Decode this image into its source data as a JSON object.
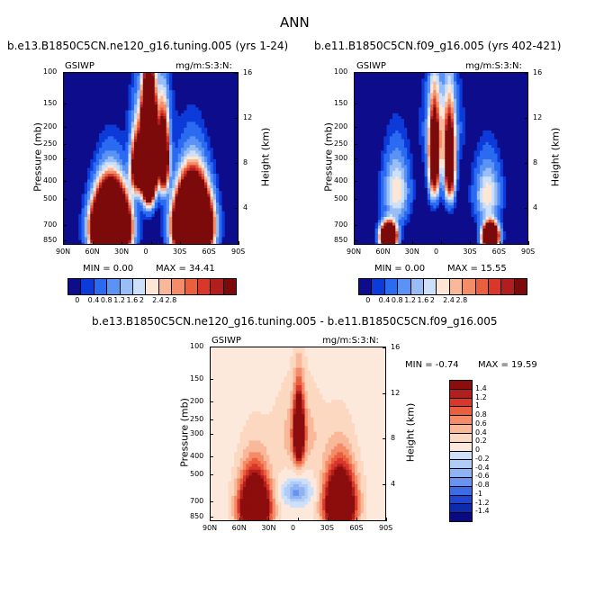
{
  "figure": {
    "title": "ANN"
  },
  "chart_data": [
    {
      "type": "heatmap",
      "title": "b.e13.B1850C5CN.ne120_g16.tuning.005 (yrs 1-24)",
      "variable_label": "GSIWP",
      "units_label": "mg/m:S:3:N:",
      "xlabel": "",
      "ylabel": "Pressure (mb)",
      "y2label": "Height (km)",
      "x_ticks": [
        "90N",
        "60N",
        "30N",
        "0",
        "30S",
        "60S",
        "90S"
      ],
      "y_ticks": [
        "100",
        "150",
        "200",
        "250",
        "300",
        "400",
        "500",
        "700",
        "850"
      ],
      "y2_ticks": [
        "16",
        "12",
        "8",
        "4"
      ],
      "min_text": "MIN =    0.00",
      "max_text": "MAX =   34.41",
      "min": 0.0,
      "max": 34.41,
      "field": {
        "background": 0.0,
        "blobs": [
          {
            "lat": 42,
            "p": 720,
            "slat": 14,
            "sp": 230,
            "amp": 40
          },
          {
            "lat": -42,
            "p": 700,
            "slat": 14,
            "sp": 240,
            "amp": 40
          },
          {
            "lat": 3,
            "p": 300,
            "slat": 6,
            "sp": 150,
            "amp": 34
          },
          {
            "lat": -12,
            "p": 300,
            "slat": 5,
            "sp": 120,
            "amp": 10
          },
          {
            "lat": 15,
            "p": 330,
            "slat": 6,
            "sp": 110,
            "amp": 8
          },
          {
            "lat": 0,
            "p": 180,
            "slat": 16,
            "sp": 90,
            "amp": 1.8
          }
        ]
      }
    },
    {
      "type": "heatmap",
      "title": "b.e11.B1850C5CN.f09_g16.005 (yrs 402-421)",
      "variable_label": "GSIWP",
      "units_label": "mg/m:S:3:N:",
      "xlabel": "",
      "ylabel": "Pressure (mb)",
      "y2label": "Height (km)",
      "x_ticks": [
        "90N",
        "60N",
        "30N",
        "0",
        "30S",
        "60S",
        "90S"
      ],
      "y_ticks": [
        "100",
        "150",
        "200",
        "250",
        "300",
        "400",
        "500",
        "700",
        "850"
      ],
      "y2_ticks": [
        "16",
        "12",
        "8",
        "4"
      ],
      "min_text": "MIN =    0.00",
      "max_text": "MAX =   15.55",
      "min": 0.0,
      "max": 15.55,
      "field": {
        "background": 0.0,
        "blobs": [
          {
            "lat": 55,
            "p": 800,
            "slat": 7,
            "sp": 110,
            "amp": 16
          },
          {
            "lat": -50,
            "p": 800,
            "slat": 7,
            "sp": 110,
            "amp": 16
          },
          {
            "lat": 47,
            "p": 450,
            "slat": 12,
            "sp": 180,
            "amp": 2.4
          },
          {
            "lat": -47,
            "p": 470,
            "slat": 12,
            "sp": 170,
            "amp": 2.3
          },
          {
            "lat": 8,
            "p": 300,
            "slat": 5,
            "sp": 150,
            "amp": 8
          },
          {
            "lat": -8,
            "p": 320,
            "slat": 5,
            "sp": 150,
            "amp": 8
          },
          {
            "lat": 0,
            "p": 200,
            "slat": 16,
            "sp": 110,
            "amp": 1.7
          }
        ]
      }
    },
    {
      "type": "heatmap",
      "title": "b.e13.B1850C5CN.ne120_g16.tuning.005 - b.e11.B1850C5CN.f09_g16.005",
      "variable_label": "GSIWP",
      "units_label": "mg/m:S:3:N:",
      "xlabel": "",
      "ylabel": "Pressure (mb)",
      "y2label": "Height (km)",
      "x_ticks": [
        "90N",
        "60N",
        "30N",
        "0",
        "30S",
        "60S",
        "90S"
      ],
      "y_ticks": [
        "100",
        "150",
        "200",
        "250",
        "300",
        "400",
        "500",
        "700",
        "850"
      ],
      "y2_ticks": [
        "16",
        "12",
        "8",
        "4"
      ],
      "min_text": "MIN =   -0.74",
      "max_text": "MAX =   19.59",
      "min": -0.74,
      "max": 19.59,
      "field": {
        "background": 0.1,
        "blobs": [
          {
            "lat": 45,
            "p": 750,
            "slat": 15,
            "sp": 280,
            "amp": 3.2
          },
          {
            "lat": -42,
            "p": 720,
            "slat": 15,
            "sp": 280,
            "amp": 3.2
          },
          {
            "lat": 0,
            "p": 290,
            "slat": 5,
            "sp": 120,
            "amp": 2.6
          },
          {
            "lat": 0,
            "p": 300,
            "slat": 22,
            "sp": 140,
            "amp": 0.5
          },
          {
            "lat": 2,
            "p": 620,
            "slat": 14,
            "sp": 90,
            "amp": -0.75
          }
        ]
      }
    }
  ],
  "colorbars": {
    "absolute": {
      "labels": [
        "0",
        "0.4",
        "0.8",
        "1.2",
        "1.6",
        "2",
        "2.4",
        "2.8"
      ],
      "colors": [
        "#0d0d8c",
        "#0d3bd9",
        "#2b6bf2",
        "#5b93f5",
        "#98bdf7",
        "#cde0fa",
        "#fde6d6",
        "#f9b89a",
        "#f48c68",
        "#ea5f3d",
        "#d8372a",
        "#b01e1e",
        "#7c0a0a"
      ]
    },
    "difference": {
      "labels": [
        "1.4",
        "1.2",
        "1",
        "0.8",
        "0.6",
        "0.4",
        "0.2",
        "0",
        "-0.2",
        "-0.4",
        "-0.6",
        "-0.8",
        "-1",
        "-1.2",
        "-1.4"
      ],
      "colors": [
        "#8c0d0d",
        "#b01e1e",
        "#d8372a",
        "#ea5f3d",
        "#f48c68",
        "#f9b89a",
        "#fcd8c0",
        "#fde9dc",
        "#cde0fa",
        "#afcdf7",
        "#8fb3f3",
        "#6a92ef",
        "#3d6be6",
        "#1f45d4",
        "#0d2bb0",
        "#0a0a82"
      ]
    }
  }
}
